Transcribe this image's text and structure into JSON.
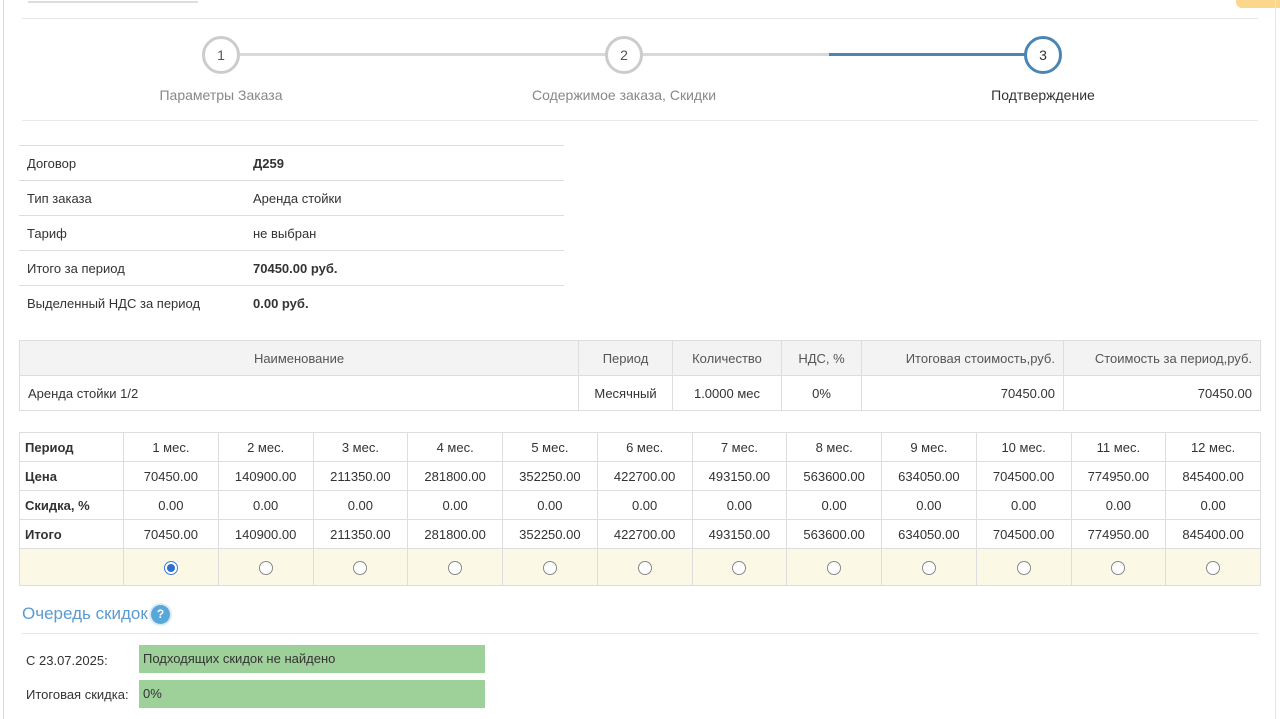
{
  "wizard": {
    "steps": [
      {
        "number": "1",
        "label": "Параметры Заказа"
      },
      {
        "number": "2",
        "label": "Содержимое заказа, Скидки"
      },
      {
        "number": "3",
        "label": "Подтверждение"
      }
    ],
    "active_step": 3
  },
  "summary": [
    {
      "label": "Договор",
      "value": "Д259"
    },
    {
      "label": "Тип заказа",
      "value": "Аренда стойки"
    },
    {
      "label": "Тариф",
      "value": "не выбран"
    },
    {
      "label": "Итого за период",
      "value": "70450.00 руб."
    },
    {
      "label": "Выделенный НДС за период",
      "value": "0.00 руб."
    }
  ],
  "items": {
    "headers": [
      "Наименование",
      "Период",
      "Количество",
      "НДС, %",
      "Итоговая стоимость,руб.",
      "Стоимость за период,руб."
    ],
    "rows": [
      [
        "Аренда стойки 1/2",
        "Месячный",
        "1.0000 мес",
        "0%",
        "70450.00",
        "70450.00"
      ]
    ]
  },
  "periods": {
    "row_labels": [
      "Период",
      "Цена",
      "Скидка, %",
      "Итого"
    ],
    "months": [
      "1 мес.",
      "2 мес.",
      "3 мес.",
      "4 мес.",
      "5 мес.",
      "6 мес.",
      "7 мес.",
      "8 мес.",
      "9 мес.",
      "10 мес.",
      "11 мес.",
      "12 мес."
    ],
    "prices": [
      "70450.00",
      "140900.00",
      "211350.00",
      "281800.00",
      "352250.00",
      "422700.00",
      "493150.00",
      "563600.00",
      "634050.00",
      "704500.00",
      "774950.00",
      "845400.00"
    ],
    "discounts": [
      "0.00",
      "0.00",
      "0.00",
      "0.00",
      "0.00",
      "0.00",
      "0.00",
      "0.00",
      "0.00",
      "0.00",
      "0.00",
      "0.00"
    ],
    "totals": [
      "70450.00",
      "140900.00",
      "211350.00",
      "281800.00",
      "352250.00",
      "422700.00",
      "493150.00",
      "563600.00",
      "634050.00",
      "704500.00",
      "774950.00",
      "845400.00"
    ],
    "selected_index": 0
  },
  "discount_queue": {
    "title": "Очередь скидок",
    "help_icon": "?",
    "from_label": "С 23.07.2025:",
    "from_value": "Подходящих скидок не найдено",
    "total_label": "Итоговая скидка:",
    "total_value": "0%"
  }
}
